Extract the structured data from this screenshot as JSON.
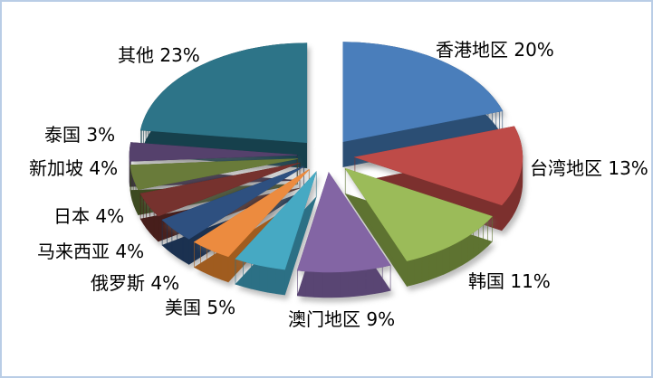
{
  "frame": {
    "background": "#FFFFFF",
    "border_color": "#B9CDE6"
  },
  "chart_data": {
    "type": "pie",
    "style": "3d_exploded",
    "title": "",
    "legend": "none",
    "value_unit": "%",
    "total": 100,
    "start_angle_deg": -90,
    "direction": "clockwise",
    "label_format": "{name} {value}%",
    "series": [
      {
        "key": "hong-kong",
        "name": "香港地区",
        "value": 20,
        "color": "#4A7EBB",
        "side_color": "#2B4E74"
      },
      {
        "key": "taiwan",
        "name": "台湾地区",
        "value": 13,
        "color": "#BE4B48",
        "side_color": "#7C302E"
      },
      {
        "key": "south-korea",
        "name": "韩国",
        "value": 11,
        "color": "#9BBB59",
        "side_color": "#5E7331"
      },
      {
        "key": "macau",
        "name": "澳门地区",
        "value": 9,
        "color": "#8365A4",
        "side_color": "#594573"
      },
      {
        "key": "usa",
        "name": "美国",
        "value": 5,
        "color": "#46A9C3",
        "side_color": "#2C7085"
      },
      {
        "key": "russia",
        "name": "俄罗斯",
        "value": 4,
        "color": "#EC8B3F",
        "side_color": "#A05C1F"
      },
      {
        "key": "malaysia",
        "name": "马来西亚",
        "value": 4,
        "color": "#2E5080",
        "side_color": "#1B3150"
      },
      {
        "key": "japan",
        "name": "日本",
        "value": 4,
        "color": "#76322E",
        "side_color": "#471E1B"
      },
      {
        "key": "singapore",
        "name": "新加坡",
        "value": 4,
        "color": "#697B3A",
        "side_color": "#3D4A20"
      },
      {
        "key": "thailand",
        "name": "泰国",
        "value": 3,
        "color": "#55416C",
        "side_color": "#31223F"
      },
      {
        "key": "other",
        "name": "其他",
        "value": 23,
        "color": "#2D7488",
        "side_color": "#16404C"
      }
    ]
  }
}
